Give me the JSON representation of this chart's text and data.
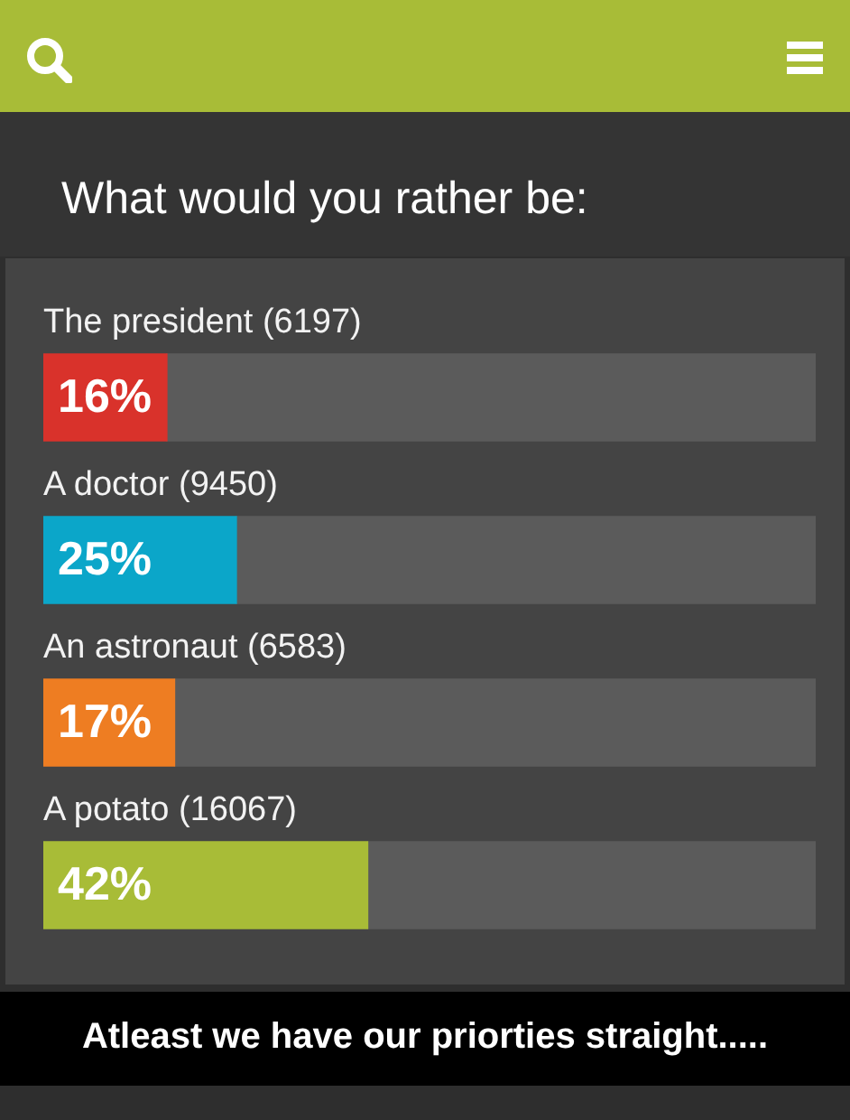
{
  "chart_data": {
    "type": "bar",
    "orientation": "horizontal",
    "stacked": true,
    "title": "What would you rather be:",
    "categories": [
      "The president (6197)",
      "A doctor (9450)",
      "An astronaut (6583)",
      "A potato (16067)"
    ],
    "series": [
      {
        "colors": [
          "#d9322b",
          "#0ba6c9",
          "#ee7d22",
          "#a8bc37"
        ],
        "values": [
          16,
          25,
          17,
          42
        ],
        "value_labels": [
          "16%",
          "25%",
          "17%",
          "42%"
        ]
      },
      {
        "color": "#5b5b5b",
        "values": [
          84,
          75,
          83,
          58
        ]
      }
    ],
    "xlim": [
      0,
      100
    ],
    "tick_labels": false,
    "legend": false,
    "annotations": [
      "Atleast we have our priorties straight....."
    ]
  }
}
